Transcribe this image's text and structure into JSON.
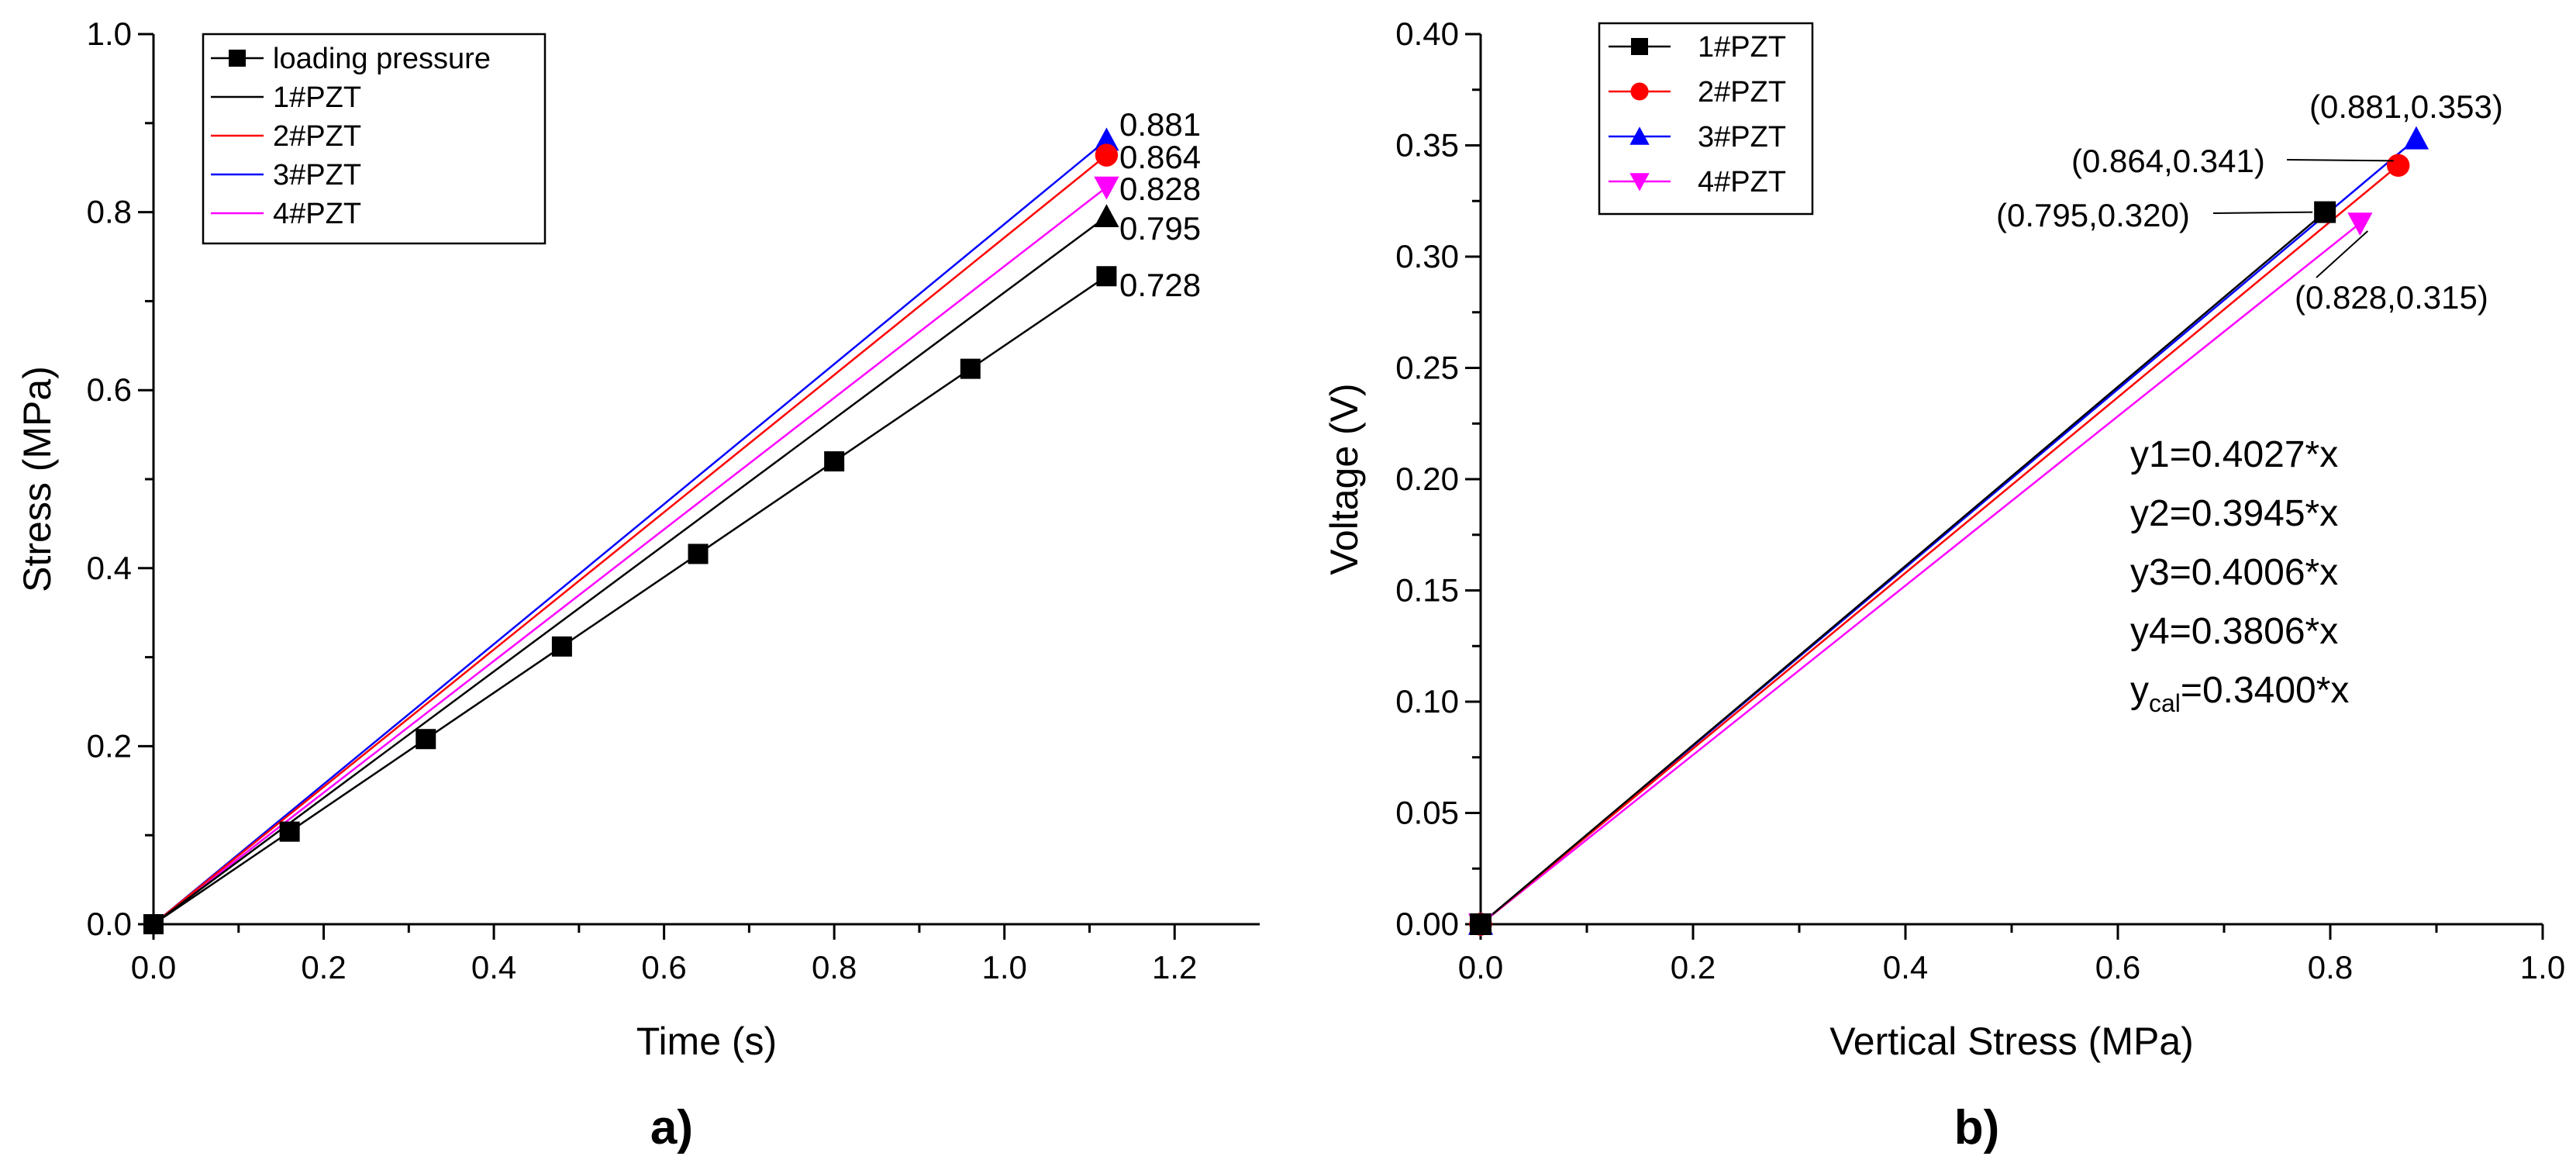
{
  "chart_data": [
    {
      "type": "line",
      "panel_label": "a)",
      "xlabel": "Time (s)",
      "ylabel": "Stress (MPa)",
      "xlim": [
        0.0,
        1.3
      ],
      "ylim": [
        0.0,
        1.0
      ],
      "xticks": [
        "0.0",
        "0.2",
        "0.4",
        "0.6",
        "0.8",
        "1.0",
        "1.2"
      ],
      "yticks": [
        "0.0",
        "0.2",
        "0.4",
        "0.6",
        "0.8",
        "1.0"
      ],
      "legend_position": "top-left",
      "series": [
        {
          "name": "loading pressure",
          "color": "#000000",
          "marker": "square",
          "x": [
            0,
            0.16,
            0.32,
            0.48,
            0.64,
            0.8,
            0.96,
            1.12
          ],
          "y": [
            0,
            0.104,
            0.208,
            0.312,
            0.416,
            0.52,
            0.624,
            0.728
          ]
        },
        {
          "name": "1#PZT",
          "color": "#000000",
          "marker": "triangle-up",
          "x": [
            0,
            1.12
          ],
          "y": [
            0,
            0.795
          ]
        },
        {
          "name": "2#PZT",
          "color": "#ff0000",
          "marker": "circle",
          "x": [
            0,
            1.12
          ],
          "y": [
            0,
            0.864
          ]
        },
        {
          "name": "3#PZT",
          "color": "#0000ff",
          "marker": "triangle-up",
          "x": [
            0,
            1.12
          ],
          "y": [
            0,
            0.881
          ]
        },
        {
          "name": "4#PZT",
          "color": "#ff00ff",
          "marker": "triangle-down",
          "x": [
            0,
            1.12
          ],
          "y": [
            0,
            0.828
          ]
        }
      ],
      "annotations": [
        {
          "text": "0.881",
          "x": 1.12,
          "y": 0.881
        },
        {
          "text": "0.864",
          "x": 1.12,
          "y": 0.864
        },
        {
          "text": "0.828",
          "x": 1.12,
          "y": 0.828
        },
        {
          "text": "0.795",
          "x": 1.12,
          "y": 0.795
        },
        {
          "text": "0.728",
          "x": 1.12,
          "y": 0.728
        }
      ]
    },
    {
      "type": "line",
      "panel_label": "b)",
      "xlabel": "Vertical Stress (MPa)",
      "ylabel": "Voltage (V)",
      "xlim": [
        0.0,
        1.0
      ],
      "ylim": [
        0.0,
        0.4
      ],
      "xticks": [
        "0.0",
        "0.2",
        "0.4",
        "0.6",
        "0.8",
        "1.0"
      ],
      "yticks": [
        "0.00",
        "0.05",
        "0.10",
        "0.15",
        "0.20",
        "0.25",
        "0.30",
        "0.35",
        "0.40"
      ],
      "legend_position": "top-left",
      "series": [
        {
          "name": "1#PZT",
          "color": "#000000",
          "marker": "square",
          "x": [
            0,
            0.795
          ],
          "y": [
            0,
            0.32
          ]
        },
        {
          "name": "2#PZT",
          "color": "#ff0000",
          "marker": "circle",
          "x": [
            0,
            0.864
          ],
          "y": [
            0,
            0.341
          ]
        },
        {
          "name": "3#PZT",
          "color": "#0000ff",
          "marker": "triangle-up",
          "x": [
            0,
            0.881
          ],
          "y": [
            0,
            0.353
          ]
        },
        {
          "name": "4#PZT",
          "color": "#ff00ff",
          "marker": "triangle-down",
          "x": [
            0,
            0.828
          ],
          "y": [
            0,
            0.315
          ]
        }
      ],
      "point_labels": [
        {
          "text": "(0.881,0.353)",
          "x": 0.881,
          "y": 0.353
        },
        {
          "text": "(0.864,0.341)",
          "x": 0.864,
          "y": 0.341
        },
        {
          "text": "(0.795,0.320)",
          "x": 0.795,
          "y": 0.32
        },
        {
          "text": "(0.828,0.315)",
          "x": 0.828,
          "y": 0.315
        }
      ],
      "equations": [
        {
          "text": "y1=0.4027*x",
          "color": "#000000"
        },
        {
          "text": "y2=0.3945*x",
          "color": "#000000"
        },
        {
          "text": "y3=0.4006*x",
          "color": "#000000"
        },
        {
          "text": "y4=0.3806*x",
          "color": "#000000"
        },
        {
          "text": "y",
          "sub": "cal",
          "rest": "=0.3400*x",
          "color": "#ff0000"
        }
      ]
    }
  ]
}
